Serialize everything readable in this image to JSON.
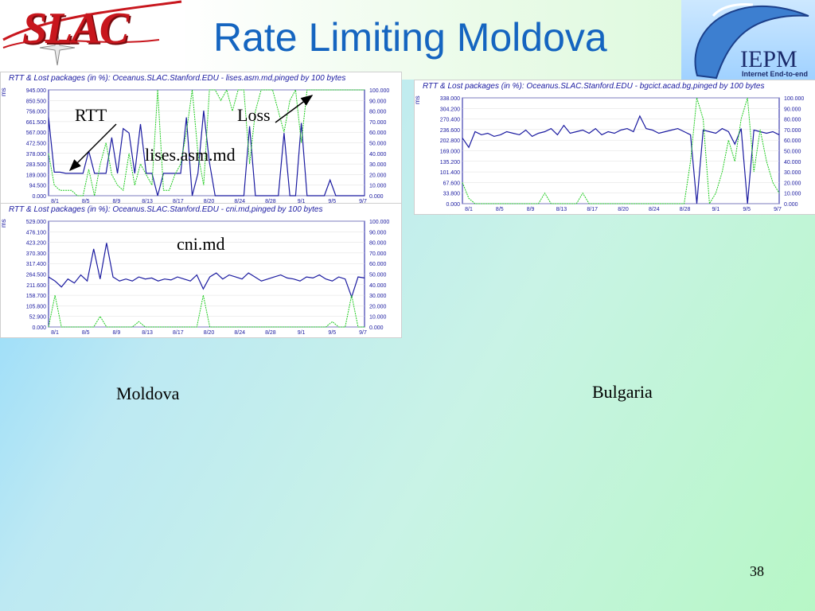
{
  "header": {
    "logo_text": "SLAC",
    "title": "Rate Limiting Moldova",
    "iepm_logo": "IEPM",
    "iepm_sub": "Internet End-to-end"
  },
  "annotations": {
    "rtt": "RTT",
    "loss": "Loss",
    "host1": "lises.asm.md",
    "host2": "cni.md",
    "moldova": "Moldova",
    "bulgaria": "Bulgaria"
  },
  "slide_number": "38",
  "colors": {
    "rtt_line": "#1a1aa0",
    "loss_line": "#22cc22",
    "title": "#1565c0"
  },
  "chart_data": [
    {
      "type": "line",
      "title": "RTT & Lost packages (in %): Oceanus.SLAC.Stanford.EDU - lises.asm.md,pinged  by 100 bytes",
      "ylabel": "ms",
      "y_ticks": [
        "945.000",
        "850.500",
        "756.000",
        "661.500",
        "567.000",
        "472.500",
        "378.000",
        "283.500",
        "189.000",
        "94.500",
        "0.000"
      ],
      "y2_ticks": [
        "100.000",
        "90.000",
        "80.000",
        "70.000",
        "60.000",
        "50.000",
        "40.000",
        "30.000",
        "20.000",
        "10.000",
        "0.000"
      ],
      "x_ticks": [
        "8/1",
        "8/5",
        "8/9",
        "8/13",
        "8/17",
        "8/20",
        "8/24",
        "8/28",
        "9/1",
        "9/5",
        "9/7"
      ],
      "ylim": [
        0,
        945
      ],
      "y2lim": [
        0,
        100
      ],
      "series": [
        {
          "role": "rtt",
          "values": [
            700,
            210,
            210,
            200,
            200,
            200,
            200,
            400,
            200,
            200,
            200,
            520,
            200,
            600,
            560,
            200,
            640,
            200,
            200,
            0,
            200,
            200,
            200,
            200,
            700,
            0,
            200,
            760,
            300,
            0,
            0,
            0,
            0,
            0,
            0,
            620,
            0,
            0,
            0,
            0,
            0,
            560,
            0,
            0,
            650,
            0,
            0,
            0,
            0,
            140,
            0,
            0,
            0,
            0,
            0,
            0
          ]
        },
        {
          "role": "loss",
          "values": [
            40,
            10,
            5,
            5,
            5,
            0,
            0,
            25,
            0,
            30,
            50,
            20,
            10,
            5,
            40,
            10,
            30,
            20,
            10,
            100,
            5,
            5,
            20,
            30,
            60,
            100,
            40,
            10,
            100,
            100,
            90,
            100,
            80,
            100,
            100,
            30,
            80,
            100,
            100,
            100,
            80,
            60,
            90,
            100,
            50,
            100,
            100,
            100,
            100,
            100,
            100,
            100,
            100,
            100,
            100,
            100
          ]
        }
      ]
    },
    {
      "type": "line",
      "title": "RTT & Lost packages (in %): Oceanus.SLAC.Stanford.EDU - bgcict.acad.bg,pinged  by 100 bytes",
      "ylabel": "ms",
      "y_ticks": [
        "338.000",
        "304.200",
        "270.400",
        "236.600",
        "202.800",
        "169.000",
        "135.200",
        "101.400",
        "67.600",
        "33.800",
        "0.000"
      ],
      "y2_ticks": [
        "100.000",
        "90.000",
        "80.000",
        "70.000",
        "60.000",
        "50.000",
        "40.000",
        "30.000",
        "20.000",
        "10.000",
        "0.000"
      ],
      "x_ticks": [
        "8/1",
        "8/5",
        "8/9",
        "8/13",
        "8/17",
        "8/20",
        "8/24",
        "8/28",
        "9/1",
        "9/5",
        "9/7"
      ],
      "ylim": [
        0,
        338
      ],
      "y2lim": [
        0,
        100
      ],
      "series": [
        {
          "role": "rtt",
          "values": [
            210,
            180,
            230,
            220,
            225,
            215,
            220,
            230,
            225,
            220,
            235,
            215,
            225,
            230,
            240,
            220,
            250,
            225,
            230,
            235,
            225,
            240,
            220,
            230,
            225,
            235,
            240,
            230,
            280,
            240,
            235,
            225,
            230,
            235,
            240,
            230,
            220,
            0,
            235,
            230,
            225,
            240,
            230,
            190,
            240,
            0,
            235,
            230,
            225,
            230,
            220
          ]
        },
        {
          "role": "loss",
          "values": [
            20,
            5,
            0,
            0,
            0,
            0,
            0,
            0,
            0,
            0,
            0,
            0,
            0,
            10,
            0,
            0,
            0,
            0,
            0,
            10,
            0,
            0,
            0,
            0,
            0,
            0,
            0,
            0,
            0,
            0,
            0,
            0,
            0,
            0,
            0,
            0,
            40,
            100,
            80,
            0,
            10,
            30,
            60,
            40,
            80,
            100,
            30,
            70,
            40,
            20,
            10
          ]
        }
      ]
    },
    {
      "type": "line",
      "title": "RTT & Lost packages (in %): Oceanus.SLAC.Stanford.EDU - cni.md,pinged  by 100 bytes",
      "ylabel": "ms",
      "y_ticks": [
        "529.000",
        "476.100",
        "423.200",
        "370.300",
        "317.400",
        "264.500",
        "211.600",
        "158.700",
        "105.800",
        "52.900",
        "0.000"
      ],
      "y2_ticks": [
        "100.000",
        "90.000",
        "80.000",
        "70.000",
        "60.000",
        "50.000",
        "40.000",
        "30.000",
        "20.000",
        "10.000",
        "0.000"
      ],
      "x_ticks": [
        "8/1",
        "8/5",
        "8/9",
        "8/13",
        "8/17",
        "8/20",
        "8/24",
        "8/28",
        "9/1",
        "9/5",
        "9/7"
      ],
      "ylim": [
        0,
        529
      ],
      "y2lim": [
        0,
        100
      ],
      "series": [
        {
          "role": "rtt",
          "values": [
            250,
            230,
            200,
            240,
            220,
            260,
            230,
            390,
            240,
            420,
            250,
            230,
            240,
            230,
            250,
            240,
            245,
            230,
            240,
            235,
            250,
            240,
            230,
            260,
            190,
            250,
            270,
            240,
            260,
            250,
            240,
            270,
            250,
            230,
            240,
            250,
            260,
            245,
            240,
            230,
            250,
            245,
            260,
            240,
            230,
            250,
            240,
            150,
            250,
            245
          ]
        },
        {
          "role": "loss",
          "values": [
            0,
            30,
            0,
            0,
            0,
            0,
            0,
            0,
            10,
            0,
            0,
            0,
            0,
            0,
            5,
            0,
            0,
            0,
            0,
            0,
            0,
            0,
            0,
            0,
            30,
            0,
            0,
            0,
            0,
            0,
            0,
            0,
            0,
            0,
            0,
            0,
            0,
            0,
            0,
            0,
            0,
            0,
            0,
            0,
            5,
            0,
            0,
            30,
            0,
            0
          ]
        }
      ]
    }
  ]
}
